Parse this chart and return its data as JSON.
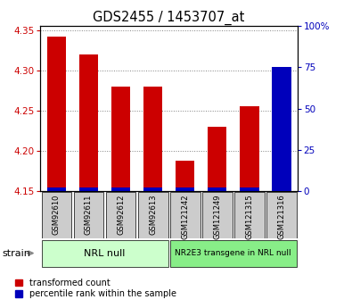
{
  "title": "GDS2455 / 1453707_at",
  "samples": [
    "GSM92610",
    "GSM92611",
    "GSM92612",
    "GSM92613",
    "GSM121242",
    "GSM121249",
    "GSM121315",
    "GSM121316"
  ],
  "transformed_counts": [
    4.342,
    4.32,
    4.28,
    4.28,
    4.188,
    4.23,
    4.255,
    4.3
  ],
  "percentile_ranks": [
    2,
    2,
    2,
    2,
    2,
    2,
    2,
    75
  ],
  "ylim_left": [
    4.15,
    4.355
  ],
  "ylim_right": [
    0,
    100
  ],
  "yticks_left": [
    4.15,
    4.2,
    4.25,
    4.3,
    4.35
  ],
  "yticks_right": [
    0,
    25,
    50,
    75,
    100
  ],
  "ytick_labels_right": [
    "0",
    "25",
    "50",
    "75",
    "100%"
  ],
  "group1_label": "NRL null",
  "group2_label": "NR2E3 transgene in NRL null",
  "group1_indices": [
    0,
    1,
    2,
    3
  ],
  "group2_indices": [
    4,
    5,
    6,
    7
  ],
  "bar_color_red": "#cc0000",
  "bar_color_blue": "#0000bb",
  "group1_bg": "#ccffcc",
  "group2_bg": "#88ee88",
  "sample_cell_bg": "#cccccc",
  "strain_label": "strain",
  "legend_red_label": "transformed count",
  "legend_blue_label": "percentile rank within the sample",
  "bar_width": 0.6
}
